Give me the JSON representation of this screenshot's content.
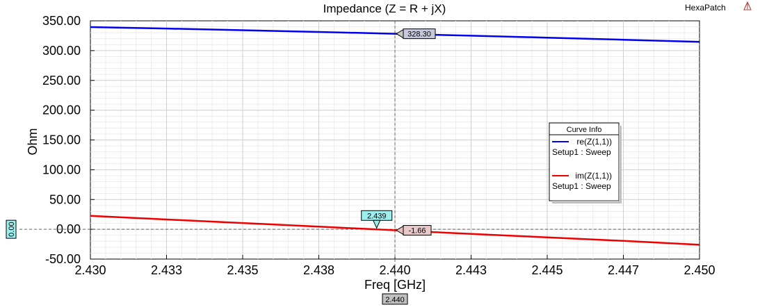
{
  "app": {
    "brand": "HexaPatch"
  },
  "chart_data": {
    "type": "line",
    "title": "Impedance (Z = R + jX)",
    "xlabel": "Freq [GHz]",
    "ylabel": "Ohm",
    "xlim": [
      2.43,
      2.45
    ],
    "ylim": [
      -50,
      350
    ],
    "x_ticks": [
      "2.430",
      "2.433",
      "2.435",
      "2.438",
      "2.440",
      "2.443",
      "2.445",
      "2.447",
      "2.450"
    ],
    "y_ticks": [
      "350.00",
      "300.00",
      "250.00",
      "200.00",
      "150.00",
      "100.00",
      "50.00",
      "0.00",
      "-50.00"
    ],
    "grid": true,
    "legend": {
      "title": "Curve Info",
      "placement": "right",
      "entries": [
        {
          "name": "re(Z(1,1))",
          "sub": "Setup1 : Sweep",
          "color": "#0000ee"
        },
        {
          "name": "im(Z(1,1))",
          "sub": "Setup1 : Sweep",
          "color": "#ee0000"
        }
      ]
    },
    "series": [
      {
        "name": "re(Z(1,1))",
        "color": "#0000ee",
        "x": [
          2.43,
          2.4325,
          2.435,
          2.4375,
          2.44,
          2.4425,
          2.445,
          2.4475,
          2.45
        ],
        "y": [
          339.5,
          337.0,
          334.2,
          331.3,
          328.3,
          325.1,
          321.8,
          318.3,
          314.7
        ]
      },
      {
        "name": "im(Z(1,1))",
        "color": "#ee0000",
        "x": [
          2.43,
          2.4325,
          2.435,
          2.4375,
          2.44,
          2.4425,
          2.445,
          2.4475,
          2.45
        ],
        "y": [
          22.5,
          16.5,
          10.5,
          4.5,
          -1.66,
          -7.8,
          -13.5,
          -19.5,
          -26.0
        ]
      }
    ],
    "markers": {
      "cursor_x_label": "2.440",
      "cursor_y_label": "0.00",
      "re_value_label": "328.30",
      "im_value_label": "-1.66",
      "crossing_label": "2.439",
      "crossing_x": 2.4394
    }
  }
}
